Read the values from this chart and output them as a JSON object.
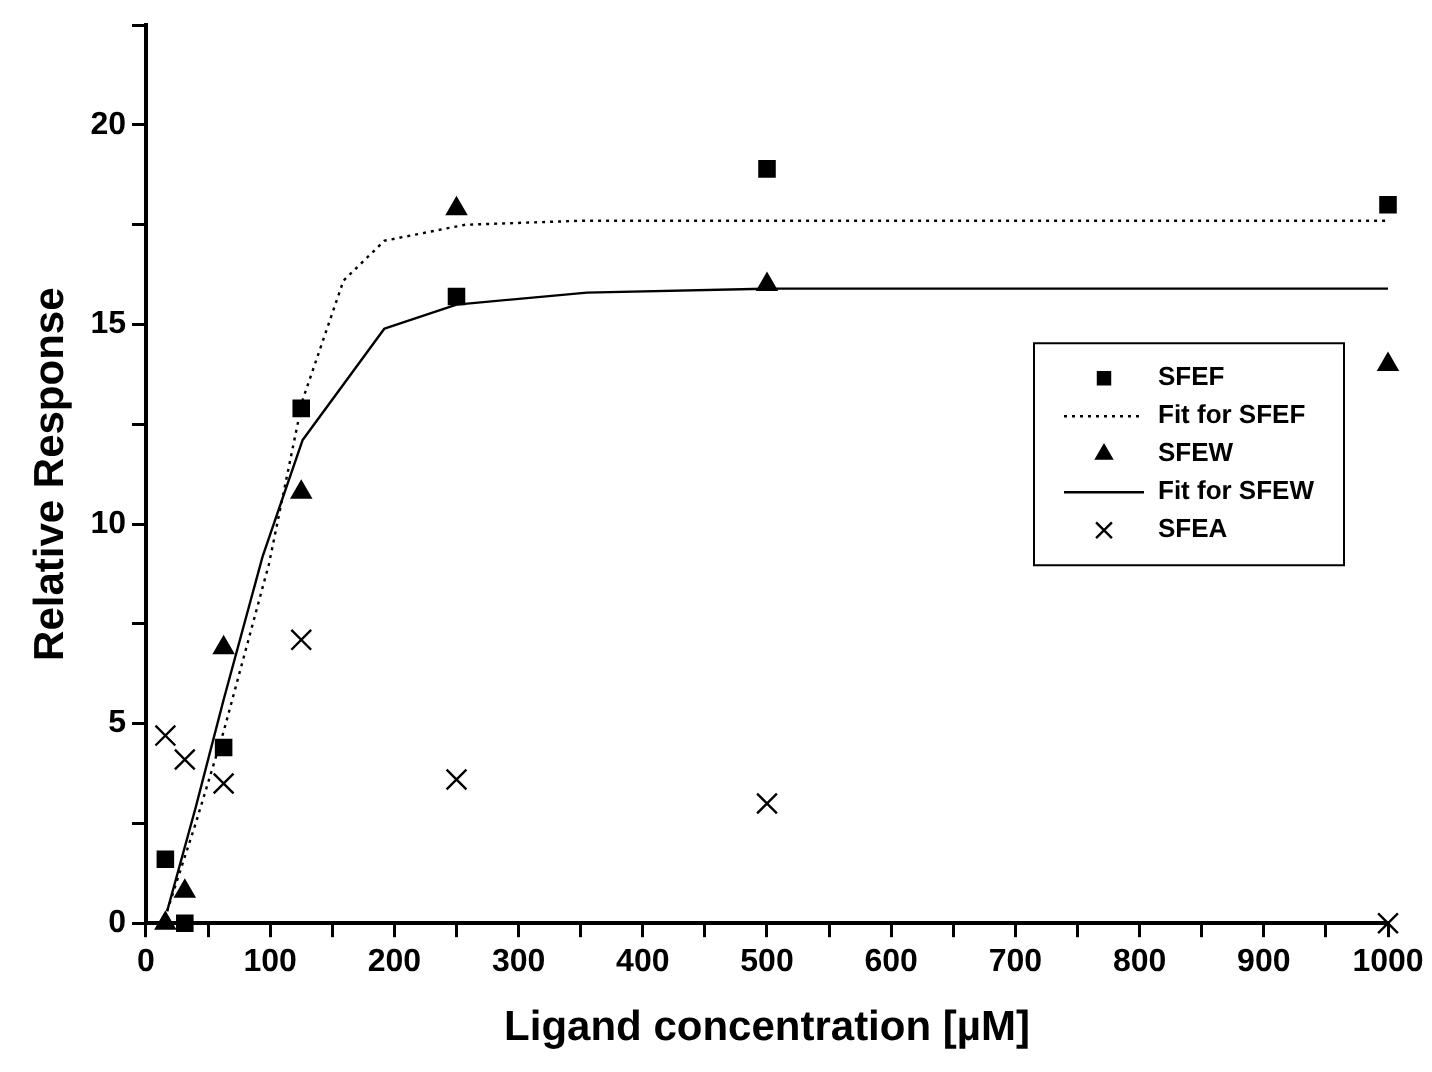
{
  "chart_data": {
    "type": "scatter",
    "xlabel": "Ligand concentration [µM]",
    "ylabel": "Relative Response",
    "xlim": [
      0,
      1000
    ],
    "ylim": [
      0,
      22.5
    ],
    "xticks": [
      0,
      {
        "value": 50,
        "label": null
      },
      100,
      {
        "value": 150,
        "label": null
      },
      200,
      {
        "value": 250,
        "label": null
      },
      300,
      {
        "value": 350,
        "label": null
      },
      400,
      {
        "value": 450,
        "label": null
      },
      500,
      {
        "value": 550,
        "label": null
      },
      600,
      {
        "value": 650,
        "label": null
      },
      700,
      {
        "value": 750,
        "label": null
      },
      800,
      {
        "value": 850,
        "label": null
      },
      900,
      {
        "value": 950,
        "label": null
      },
      1000
    ],
    "yticks": [
      0,
      {
        "value": 2.5,
        "label": null
      },
      5,
      {
        "value": 7.5,
        "label": null
      },
      10,
      {
        "value": 12.5,
        "label": null
      },
      15,
      {
        "value": 17.5,
        "label": null
      },
      20,
      {
        "value": 22.5,
        "label": null
      }
    ],
    "grid": false,
    "legend": "right",
    "series": [
      {
        "name": "SFEF",
        "type": "scatter",
        "marker": "square",
        "color": "#000000",
        "x": [
          15.6,
          31.25,
          62.5,
          125,
          250,
          500,
          1000
        ],
        "values": [
          1.6,
          0,
          4.4,
          12.9,
          15.7,
          18.9,
          18.0
        ]
      },
      {
        "name": "Fit for SFEF",
        "type": "line",
        "marker": "none",
        "line_style": "dotted",
        "color": "#000000",
        "x": [
          17,
          40,
          62.5,
          99,
          126,
          159,
          192,
          257,
          350,
          500,
          1000
        ],
        "values": [
          0.3,
          2.5,
          4.8,
          9.0,
          13.1,
          16.1,
          17.1,
          17.5,
          17.6,
          17.6,
          17.6
        ]
      },
      {
        "name": "SFEW",
        "type": "scatter",
        "marker": "triangle",
        "color": "#000000",
        "x": [
          15.6,
          31.25,
          62.5,
          125,
          250,
          500,
          1000
        ],
        "values": [
          0,
          0.8,
          6.9,
          10.8,
          17.9,
          16.0,
          14.0
        ]
      },
      {
        "name": "Fit for SFEW",
        "type": "line",
        "marker": "none",
        "line_style": "solid",
        "color": "#000000",
        "x": [
          17,
          40,
          62.5,
          94,
          126,
          192,
          250,
          355,
          500,
          1000
        ],
        "values": [
          0.3,
          2.9,
          5.6,
          9.2,
          12.1,
          14.9,
          15.5,
          15.8,
          15.9,
          15.9
        ]
      },
      {
        "name": "SFEA",
        "type": "scatter",
        "marker": "cross",
        "color": "#000000",
        "x": [
          15.6,
          31.25,
          62.5,
          125,
          250,
          500,
          1000
        ],
        "values": [
          4.7,
          4.1,
          3.5,
          7.1,
          3.6,
          3.0,
          0
        ]
      }
    ]
  }
}
